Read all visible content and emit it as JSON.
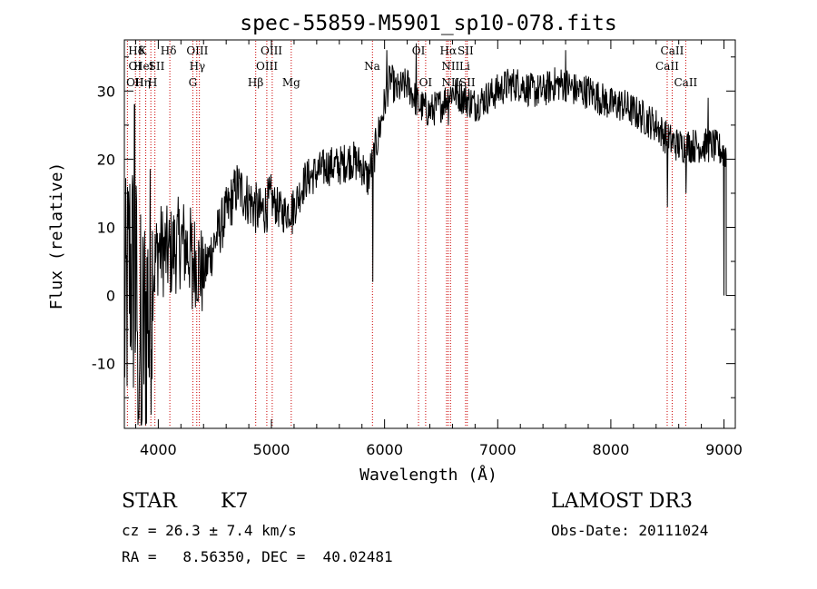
{
  "chart_data": {
    "type": "line",
    "title": "spec-55859-M5901_sp10-078.fits",
    "xlabel": "Wavelength (Å)",
    "ylabel": "Flux (relative)",
    "xlim": [
      3700,
      9100
    ],
    "ylim": [
      -19.5,
      37.5
    ],
    "x_ticks": [
      4000,
      5000,
      6000,
      7000,
      8000,
      9000
    ],
    "y_ticks": [
      -10,
      0,
      10,
      20,
      30
    ],
    "spectrum_anchors": {
      "x": [
        3700,
        3750,
        3800,
        3850,
        3900,
        3950,
        4000,
        4100,
        4200,
        4300,
        4400,
        4500,
        4600,
        4700,
        4800,
        4900,
        5000,
        5100,
        5200,
        5300,
        5400,
        5500,
        5600,
        5700,
        5800,
        5850,
        5900,
        5950,
        6000,
        6050,
        6100,
        6200,
        6300,
        6400,
        6500,
        6600,
        6700,
        6800,
        6900,
        7000,
        7100,
        7200,
        7300,
        7400,
        7500,
        7600,
        7700,
        7800,
        7900,
        8000,
        8100,
        8200,
        8300,
        8400,
        8500,
        8600,
        8700,
        8800,
        8900,
        9000
      ],
      "y": [
        -5,
        5,
        0,
        -8,
        -2,
        3,
        7,
        6,
        8,
        6,
        3,
        8,
        12,
        16,
        14,
        12,
        14,
        12,
        13,
        17,
        18,
        19,
        19,
        20,
        19,
        17,
        20,
        24,
        28,
        32,
        30,
        31,
        28,
        27,
        28,
        30,
        29,
        28,
        29,
        30,
        31,
        31,
        30,
        30,
        31,
        31,
        30,
        30,
        29,
        28,
        28,
        27,
        26,
        25,
        23,
        22,
        22,
        22,
        22,
        21
      ]
    },
    "spikes": [
      {
        "x": 3790,
        "y": 28
      },
      {
        "x": 3820,
        "y": -19
      },
      {
        "x": 3850,
        "y": -19
      },
      {
        "x": 3920,
        "y": -12
      },
      {
        "x": 4300,
        "y": -2
      },
      {
        "x": 5185,
        "y": 9
      },
      {
        "x": 5895,
        "y": 2
      },
      {
        "x": 6020,
        "y": 36
      },
      {
        "x": 6280,
        "y": 37
      },
      {
        "x": 6563,
        "y": 25
      },
      {
        "x": 7600,
        "y": 36
      },
      {
        "x": 8500,
        "y": 13
      },
      {
        "x": 8665,
        "y": 15
      },
      {
        "x": 8860,
        "y": 29
      },
      {
        "x": 9000,
        "y": 0
      }
    ],
    "spectral_lines": [
      {
        "label": "Hδ",
        "x": 3805,
        "row": 1
      },
      {
        "label": "OI",
        "x": 3795,
        "row": 2
      },
      {
        "label": "OII",
        "x": 3795,
        "row": 3
      },
      {
        "label": "K",
        "x": 3860,
        "row": 1
      },
      {
        "label": "HeI",
        "x": 3870,
        "row": 2
      },
      {
        "label": "Hη",
        "x": 3860,
        "row": 3
      },
      {
        "label": "H",
        "x": 3950,
        "row": 3
      },
      {
        "label": "SII",
        "x": 3985,
        "row": 2
      },
      {
        "label": "Hδ",
        "x": 4090,
        "row": 1
      },
      {
        "label": "OIII",
        "x": 4345,
        "row": 1
      },
      {
        "label": "Hγ",
        "x": 4345,
        "row": 2
      },
      {
        "label": "G",
        "x": 4305,
        "row": 3
      },
      {
        "label": "Hβ",
        "x": 4860,
        "row": 3
      },
      {
        "label": "OIII",
        "x": 5000,
        "row": 1
      },
      {
        "label": "OIII",
        "x": 4960,
        "row": 2
      },
      {
        "label": "Mg",
        "x": 5175,
        "row": 3
      },
      {
        "label": "Na",
        "x": 5890,
        "row": 2
      },
      {
        "label": "OI",
        "x": 6300,
        "row": 1
      },
      {
        "label": "OI",
        "x": 6363,
        "row": 3
      },
      {
        "label": "Hα",
        "x": 6563,
        "row": 1
      },
      {
        "label": "SII",
        "x": 6716,
        "row": 1
      },
      {
        "label": "NII",
        "x": 6583,
        "row": 2
      },
      {
        "label": "Li",
        "x": 6708,
        "row": 2
      },
      {
        "label": "NII",
        "x": 6583,
        "row": 3
      },
      {
        "label": "SII",
        "x": 6731,
        "row": 3
      },
      {
        "label": "CaII",
        "x": 8542,
        "row": 1
      },
      {
        "label": "CaII",
        "x": 8498,
        "row": 2
      },
      {
        "label": "CaII",
        "x": 8662,
        "row": 3
      }
    ],
    "line_positions": [
      3727,
      3798,
      3835,
      3889,
      3934,
      3970,
      4102,
      4305,
      4340,
      4363,
      4861,
      4959,
      5007,
      5175,
      5893,
      6300,
      6363,
      6548,
      6563,
      6583,
      6716,
      6731,
      8498,
      8542,
      8662
    ]
  },
  "info": {
    "object_class": "STAR",
    "subclass": "K7",
    "survey": "LAMOST DR3",
    "redshift": "cz = 26.3 ± 7.4 km/s",
    "obs_date": "Obs-Date: 20111024",
    "coords": "RA =   8.56350, DEC =  40.02481"
  }
}
